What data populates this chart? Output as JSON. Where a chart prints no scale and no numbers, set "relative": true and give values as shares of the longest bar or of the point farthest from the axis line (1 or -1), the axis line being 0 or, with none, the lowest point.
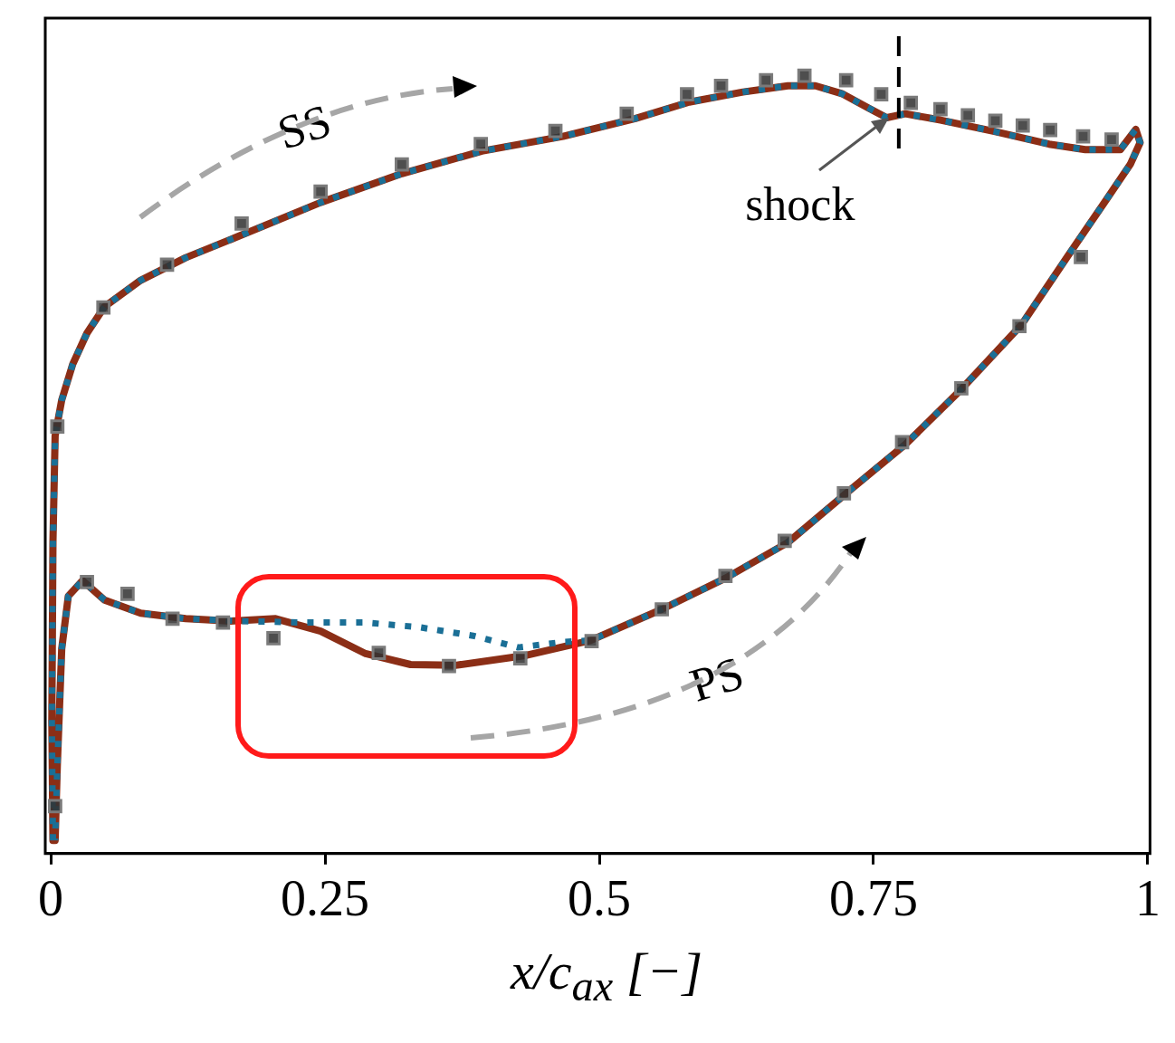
{
  "chart_data": {
    "type": "line",
    "relative": true,
    "xlabel": "x/c$_{ax}$ [−]",
    "xlim": [
      -0.005,
      1.002
    ],
    "xticks": [
      0,
      0.25,
      0.5,
      0.75,
      1
    ],
    "tick_labels": "x",
    "grid": false,
    "legend": false,
    "annotations": [
      "SS",
      "PS",
      "shock"
    ],
    "ref_lines": [
      {
        "axis": "x",
        "value": 0.773,
        "color": "#000000",
        "line_style": "dashed"
      }
    ],
    "series": [
      {
        "type": "scatter",
        "color": "#333333",
        "marker": "square",
        "x": [
          0.006,
          0.048,
          0.106,
          0.174,
          0.246,
          0.32,
          0.392,
          0.46,
          0.525,
          0.58,
          0.611,
          0.652,
          0.687,
          0.725,
          0.757,
          0.784,
          0.811,
          0.836,
          0.861,
          0.886,
          0.911,
          0.941,
          0.967,
          0.004,
          0.033,
          0.07,
          0.111,
          0.157,
          0.203,
          0.299,
          0.363,
          0.428,
          0.493,
          0.557,
          0.615,
          0.669,
          0.723,
          0.776,
          0.83,
          0.883,
          0.939
        ],
        "values": [
          0.549,
          0.702,
          0.757,
          0.81,
          0.851,
          0.886,
          0.912,
          0.929,
          0.951,
          0.976,
          0.987,
          0.994,
          1,
          0.994,
          0.976,
          0.965,
          0.957,
          0.949,
          0.942,
          0.936,
          0.93,
          0.922,
          0.918,
          0.061,
          0.349,
          0.334,
          0.302,
          0.297,
          0.277,
          0.258,
          0.241,
          0.251,
          0.273,
          0.314,
          0.357,
          0.402,
          0.463,
          0.529,
          0.598,
          0.678,
          0.767
        ]
      },
      {
        "type": "line",
        "color": "#8b2e16",
        "line_style": "solid",
        "marker": "none",
        "x": [
          0.002,
          0.001,
          0.002,
          0.004,
          0.01,
          0.02,
          0.033,
          0.049,
          0.082,
          0.123,
          0.172,
          0.246,
          0.32,
          0.393,
          0.467,
          0.533,
          0.582,
          0.631,
          0.672,
          0.697,
          0.721,
          0.746,
          0.762,
          0.779,
          0.811,
          0.861,
          0.91,
          0.943,
          0.975,
          0.989,
          0.993,
          0.984,
          0.959,
          0.926,
          0.885,
          0.828,
          0.779,
          0.73,
          0.672,
          0.615,
          0.557,
          0.492,
          0.434,
          0.369,
          0.328,
          0.287,
          0.246,
          0.205,
          0.164,
          0.123,
          0.082,
          0.049,
          0.029,
          0.016,
          0.01,
          0.006,
          0.004
        ],
        "values": [
          0.017,
          0.171,
          0.4,
          0.537,
          0.583,
          0.629,
          0.669,
          0.703,
          0.737,
          0.766,
          0.794,
          0.837,
          0.874,
          0.903,
          0.922,
          0.945,
          0.966,
          0.979,
          0.987,
          0.987,
          0.977,
          0.958,
          0.946,
          0.951,
          0.943,
          0.928,
          0.912,
          0.905,
          0.905,
          0.931,
          0.914,
          0.886,
          0.834,
          0.766,
          0.68,
          0.594,
          0.526,
          0.469,
          0.4,
          0.354,
          0.314,
          0.274,
          0.255,
          0.242,
          0.243,
          0.257,
          0.286,
          0.302,
          0.299,
          0.302,
          0.309,
          0.326,
          0.351,
          0.331,
          0.263,
          0.114,
          0.017
        ]
      },
      {
        "type": "line",
        "color": "#1a6f96",
        "line_style": "dotted",
        "marker": "none",
        "x": [
          0.002,
          0.001,
          0.002,
          0.004,
          0.01,
          0.02,
          0.033,
          0.049,
          0.082,
          0.123,
          0.172,
          0.246,
          0.32,
          0.393,
          0.467,
          0.533,
          0.582,
          0.631,
          0.672,
          0.697,
          0.721,
          0.746,
          0.762,
          0.779,
          0.811,
          0.861,
          0.91,
          0.943,
          0.975,
          0.989,
          0.993,
          0.984,
          0.959,
          0.926,
          0.885,
          0.828,
          0.779,
          0.73,
          0.672,
          0.615,
          0.557,
          0.492,
          0.467,
          0.426,
          0.385,
          0.336,
          0.287,
          0.23,
          0.172,
          0.123,
          0.082,
          0.049,
          0.029,
          0.016,
          0.01,
          0.006,
          0.004
        ],
        "values": [
          0.017,
          0.171,
          0.4,
          0.537,
          0.583,
          0.629,
          0.669,
          0.703,
          0.737,
          0.766,
          0.794,
          0.837,
          0.874,
          0.903,
          0.922,
          0.945,
          0.966,
          0.979,
          0.987,
          0.987,
          0.977,
          0.958,
          0.946,
          0.951,
          0.943,
          0.928,
          0.912,
          0.905,
          0.905,
          0.931,
          0.914,
          0.886,
          0.834,
          0.766,
          0.68,
          0.594,
          0.526,
          0.469,
          0.4,
          0.354,
          0.314,
          0.274,
          0.272,
          0.265,
          0.28,
          0.291,
          0.297,
          0.297,
          0.299,
          0.302,
          0.309,
          0.326,
          0.351,
          0.331,
          0.263,
          0.114,
          0.017
        ]
      }
    ]
  }
}
